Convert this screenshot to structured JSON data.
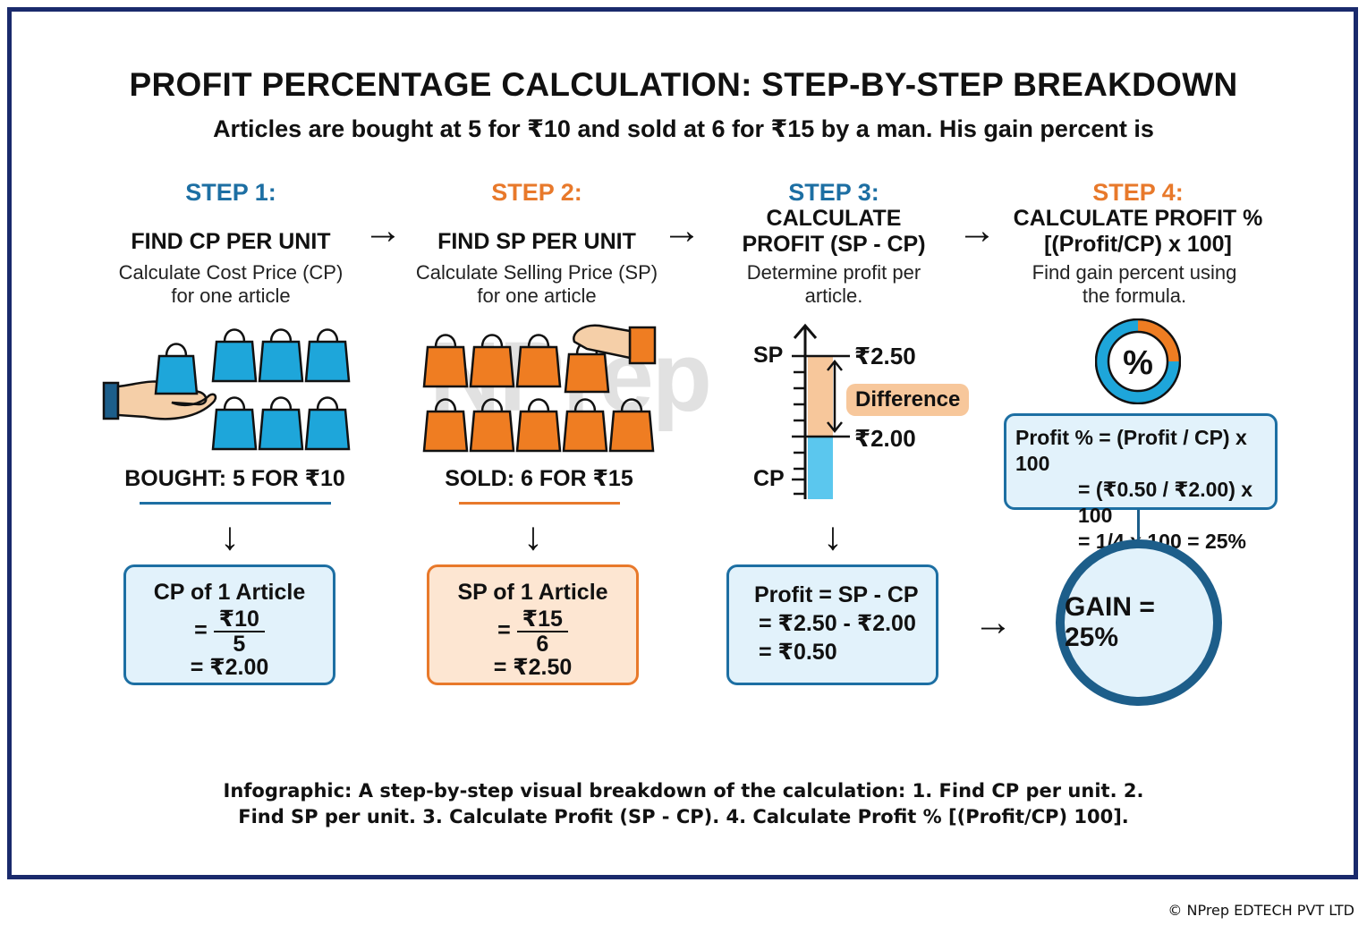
{
  "title": "PROFIT PERCENTAGE CALCULATION: STEP-BY-STEP BREAKDOWN",
  "subtitle": "Articles are bought at 5 for ₹10 and sold at 6 for ₹15 by a man. His gain percent is",
  "watermark": "NPrep",
  "colors": {
    "blue": "#1d6fa3",
    "orange": "#e8792b",
    "frame": "#1a2a6c",
    "light_blue": "#e2f2fb",
    "light_orange": "#fde6d2"
  },
  "steps": [
    {
      "label": "STEP 1:",
      "heading": "FIND CP PER UNIT",
      "desc_line1": "Calculate Cost Price (CP)",
      "desc_line2": "for one article",
      "caption": "BOUGHT: 5 FOR ₹10",
      "icon": "blue-shopping-bags-icon",
      "box": {
        "title": "CP of 1 Article",
        "eq": "=",
        "num": "₹10",
        "den": "5",
        "result": "= ₹2.00"
      }
    },
    {
      "label": "STEP 2:",
      "heading": "FIND SP PER UNIT",
      "desc_line1": "Calculate Selling Price (SP)",
      "desc_line2": "for one article",
      "caption": "SOLD: 6 FOR ₹15",
      "icon": "orange-shopping-bags-icon",
      "box": {
        "title": "SP of 1 Article",
        "eq": "=",
        "num": "₹15",
        "den": "6",
        "result": "= ₹2.50"
      }
    },
    {
      "label": "STEP 3:",
      "heading_line1": "CALCULATE",
      "heading_line2": "PROFIT (SP - CP)",
      "desc_line1": "Determine profit per",
      "desc_line2": "article.",
      "scale": {
        "sp_label": "SP",
        "cp_label": "CP",
        "sp_value": "₹2.50",
        "cp_value": "₹2.00",
        "difference": "Difference"
      },
      "box": {
        "line1": "Profit = SP - CP",
        "line2": "= ₹2.50 - ₹2.00",
        "line3": "= ₹0.50"
      }
    },
    {
      "label": "STEP 4:",
      "heading_line1": "CALCULATE PROFIT %",
      "heading_line2": "[(Profit/CP) x 100]",
      "desc_line1": "Find gain percent using",
      "desc_line2": "the formula.",
      "icon": "percent-donut-icon",
      "box": {
        "line1": "Profit % = (Profit / CP) x 100",
        "line2": "= (₹0.50 / ₹2.00) x 100",
        "line3": "= 1/4 x 100 = 25%"
      },
      "gain": "GAIN = 25%"
    }
  ],
  "footer_line1": "Infographic: A step-by-step visual breakdown of the calculation: 1. Find CP per unit. 2.",
  "footer_line2": "Find SP per unit. 3. Calculate Profit (SP - CP). 4. Calculate Profit % [(Profit/CP) 100].",
  "copyright": "© NPrep EDTECH PVT LTD",
  "arrows": {
    "right": "→",
    "down": "↓"
  }
}
